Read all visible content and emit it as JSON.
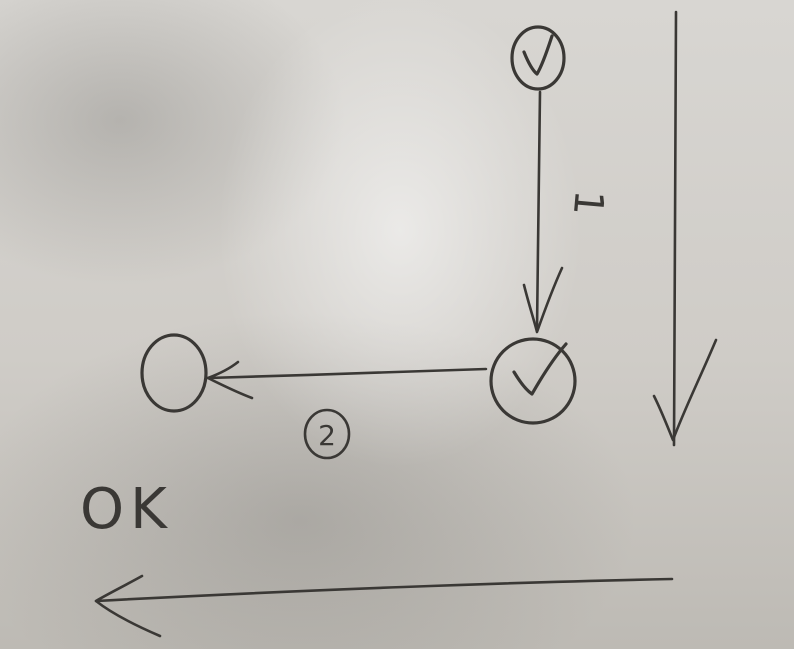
{
  "diagram": {
    "nodes": [
      {
        "id": "top-node",
        "mark": "check"
      },
      {
        "id": "middle-node",
        "mark": "check"
      },
      {
        "id": "left-node",
        "mark": "empty"
      }
    ],
    "edges": [
      {
        "from": "top-node",
        "to": "middle-node",
        "label": "1"
      },
      {
        "from": "middle-node",
        "to": "left-node",
        "label": "2"
      }
    ],
    "side_note": "OK",
    "ink_color": "#3a3835"
  }
}
